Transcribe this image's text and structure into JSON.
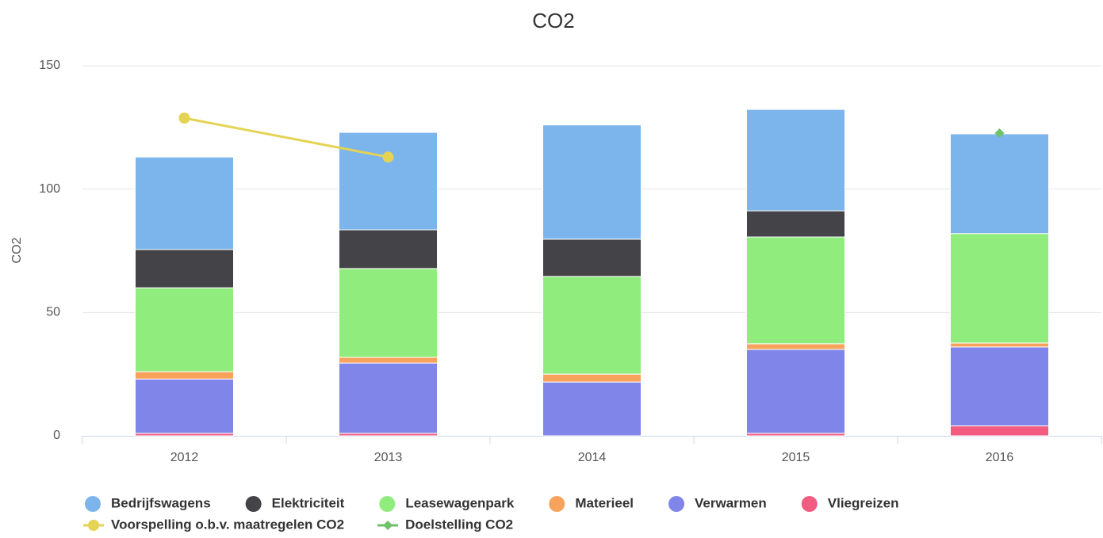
{
  "chart_data": {
    "type": "bar",
    "stacked": true,
    "title": "CO2",
    "y_label": "CO2",
    "categories": [
      "2012",
      "2013",
      "2014",
      "2015",
      "2016"
    ],
    "ylim": [
      0,
      150
    ],
    "yticks": [
      0,
      50,
      100,
      150
    ],
    "grid": true,
    "legend": "bottom",
    "series": [
      {
        "name": "Bedrijfswagens",
        "color": "#7cb5ec",
        "values": [
          37.5,
          39.5,
          46.3,
          41.1,
          40.4
        ]
      },
      {
        "name": "Elektriciteit",
        "color": "#434348",
        "values": [
          15.5,
          15.7,
          15.1,
          10.6,
          null
        ]
      },
      {
        "name": "Leasewagenpark",
        "color": "#90ed7d",
        "values": [
          34,
          36,
          39.6,
          43.3,
          44.4
        ]
      },
      {
        "name": "Materieel",
        "color": "#f7a35c",
        "values": [
          3,
          2.3,
          3.2,
          2.3,
          1.6
        ]
      },
      {
        "name": "Verwarmen",
        "color": "#8085e9",
        "values": [
          22,
          28.5,
          21.8,
          34,
          32
        ]
      },
      {
        "name": "Vliegreizen",
        "color": "#f15c80",
        "values": [
          1,
          1,
          0,
          1,
          4
        ]
      },
      {
        "name": "Voorspelling o.b.v. maatregelen CO2",
        "type": "line",
        "marker": "circle",
        "color": "#e4d354",
        "values": [
          128.8,
          113,
          null,
          null,
          null
        ]
      },
      {
        "name": "Doelstelling CO2",
        "type": "line",
        "marker": "diamond",
        "color": "#6fc16a",
        "values": [
          null,
          null,
          null,
          null,
          122.7
        ]
      }
    ]
  }
}
